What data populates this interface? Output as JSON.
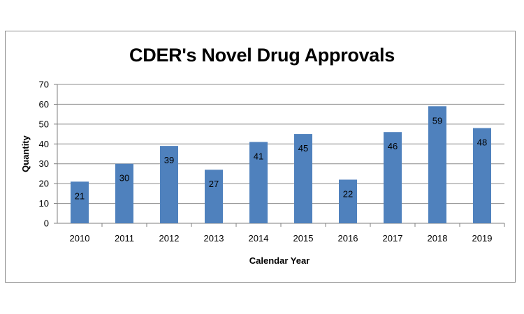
{
  "chart_data": {
    "type": "bar",
    "title": "CDER's Novel Drug Approvals",
    "xlabel": "Calendar Year",
    "ylabel": "Quantity",
    "categories": [
      "2010",
      "2011",
      "2012",
      "2013",
      "2014",
      "2015",
      "2016",
      "2017",
      "2018",
      "2019"
    ],
    "values": [
      21,
      30,
      39,
      27,
      41,
      45,
      22,
      46,
      59,
      48
    ],
    "yticks": [
      0,
      10,
      20,
      30,
      40,
      50,
      60,
      70
    ],
    "ylim": [
      0,
      70
    ],
    "grid": true,
    "legend": "none",
    "bar_color": "#4f81bd"
  }
}
